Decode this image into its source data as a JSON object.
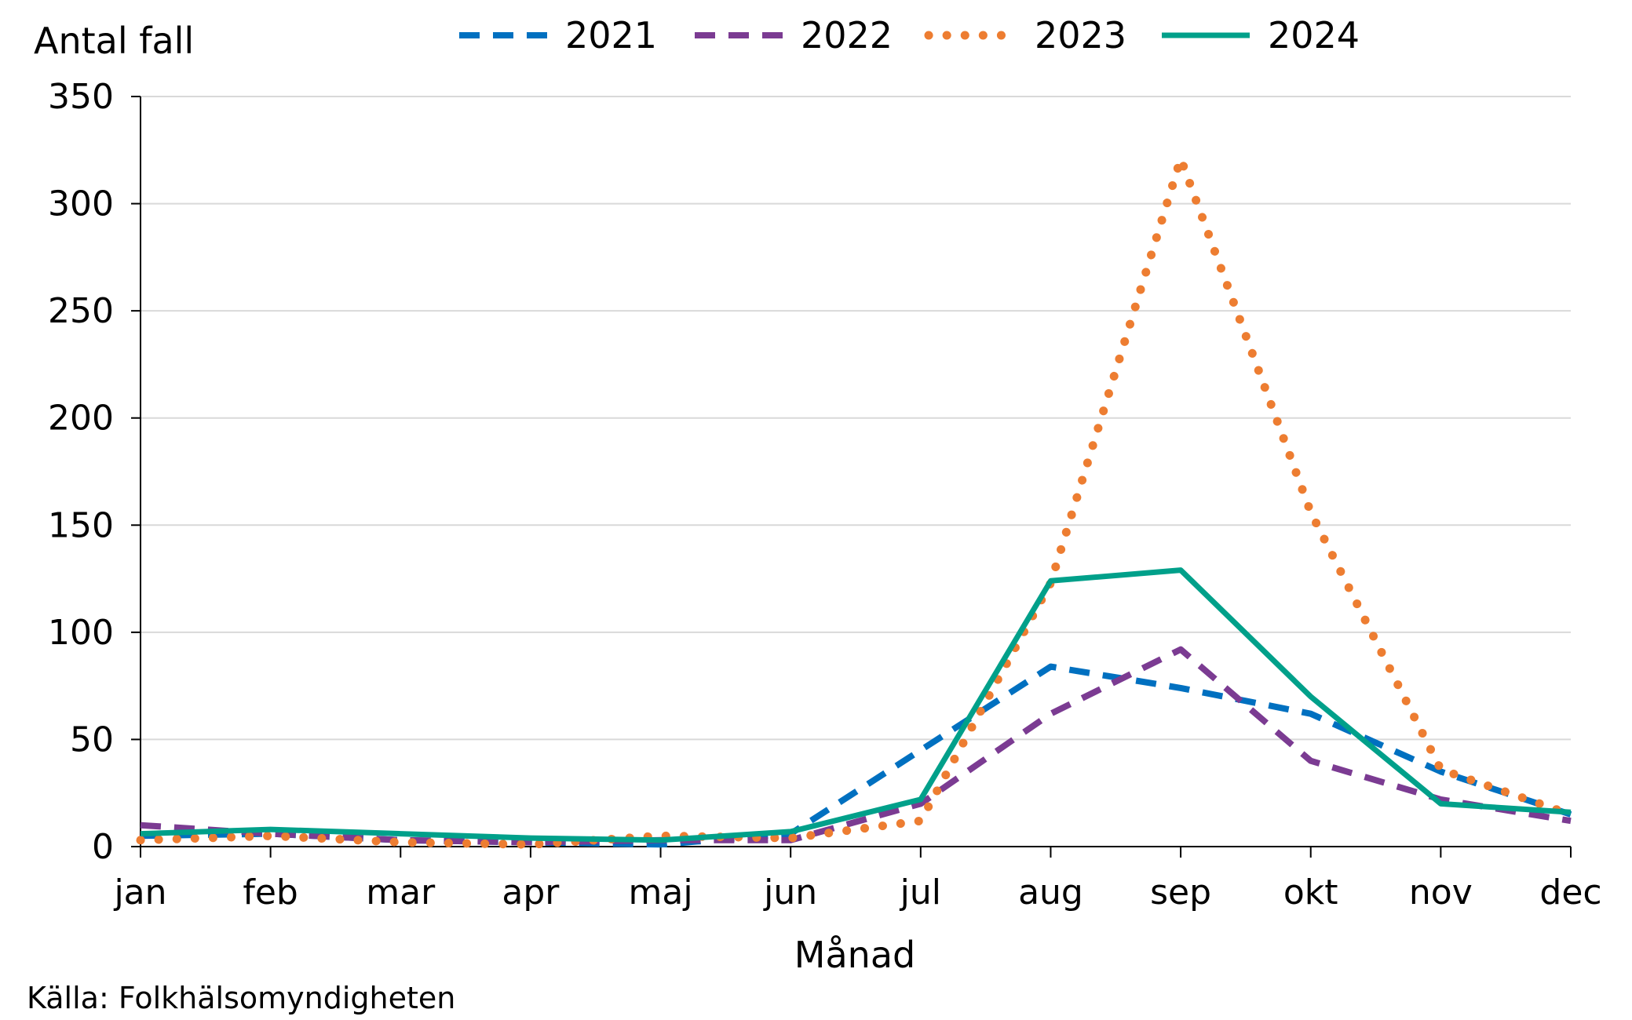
{
  "chart_data": {
    "type": "line",
    "ylabel": "Antal fall",
    "xlabel": "Månad",
    "categories": [
      "jan",
      "feb",
      "mar",
      "apr",
      "maj",
      "jun",
      "jul",
      "aug",
      "sep",
      "okt",
      "nov",
      "dec"
    ],
    "ylim": [
      0,
      350
    ],
    "yticks": [
      0,
      50,
      100,
      150,
      200,
      250,
      300,
      350
    ],
    "grid": true,
    "legend_position": "top",
    "series": [
      {
        "name": "2021",
        "color": "#0070C0",
        "dash": "dashed",
        "values": [
          5,
          6,
          3,
          2,
          1,
          6,
          45,
          84,
          74,
          62,
          35,
          15
        ]
      },
      {
        "name": "2022",
        "color": "#7B3B92",
        "dash": "dashed",
        "values": [
          10,
          6,
          3,
          2,
          3,
          3,
          20,
          62,
          92,
          40,
          22,
          12
        ]
      },
      {
        "name": "2023",
        "color": "#ED7D31",
        "dash": "dotted",
        "values": [
          3,
          5,
          2,
          1,
          5,
          4,
          12,
          123,
          321,
          156,
          36,
          15
        ]
      },
      {
        "name": "2024",
        "color": "#00A08A",
        "dash": "solid",
        "values": [
          6,
          8,
          6,
          4,
          3,
          7,
          22,
          124,
          129,
          70,
          20,
          16
        ]
      }
    ]
  },
  "source": "Källa: Folkhälsomyndigheten"
}
